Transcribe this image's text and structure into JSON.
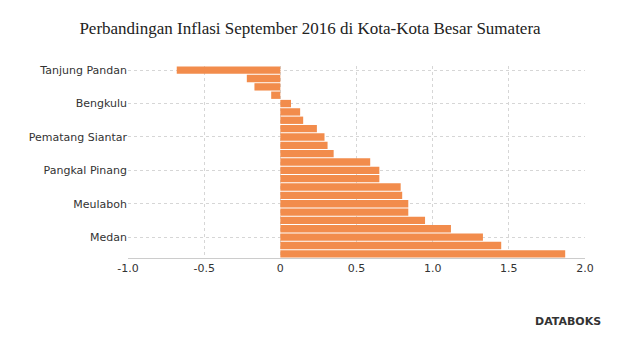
{
  "chart_data": {
    "type": "bar",
    "orientation": "horizontal",
    "title": "Perbandingan Inflasi September 2016 di Kota-Kota Besar Sumatera",
    "categories": [
      "Tanjung Pandan",
      null,
      null,
      null,
      "Bengkulu",
      null,
      null,
      null,
      "Pematang Siantar",
      null,
      null,
      null,
      "Pangkal Pinang",
      null,
      null,
      null,
      "Meulaboh",
      null,
      null,
      null,
      "Medan",
      null,
      null
    ],
    "values": [
      -0.68,
      -0.22,
      -0.17,
      -0.06,
      0.07,
      0.13,
      0.15,
      0.24,
      0.29,
      0.31,
      0.35,
      0.59,
      0.65,
      0.65,
      0.79,
      0.8,
      0.84,
      0.84,
      0.95,
      1.12,
      1.33,
      1.45,
      1.87
    ],
    "color": "#f28c4c",
    "xlim": [
      -1,
      2
    ],
    "xticks": [
      {
        "value": -1,
        "label": "-1.0"
      },
      -0.5,
      0,
      0.5,
      {
        "value": 1,
        "label": "1.0"
      },
      1.5,
      {
        "value": 2,
        "label": "2.0"
      }
    ],
    "grid": true,
    "annotations": [
      "DATABOKS"
    ]
  }
}
